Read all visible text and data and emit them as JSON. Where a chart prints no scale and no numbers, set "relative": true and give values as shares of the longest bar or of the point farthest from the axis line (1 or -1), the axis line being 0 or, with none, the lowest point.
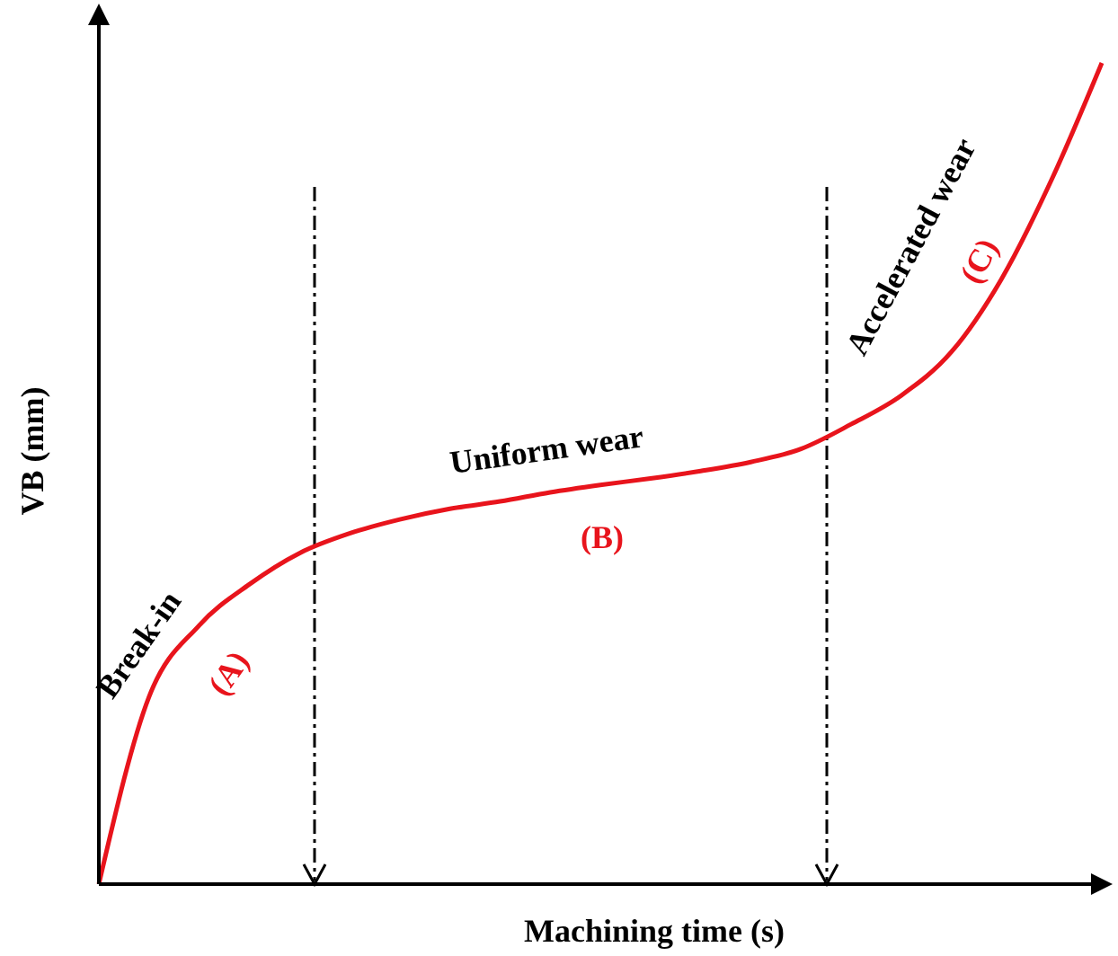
{
  "chart_data": {
    "type": "line",
    "relative": true,
    "xlabel": "Machining time  (s)",
    "ylabel": "VB (mm)",
    "categories": [
      null,
      null,
      null,
      null,
      null,
      null,
      null,
      null,
      null,
      null,
      null,
      null,
      null,
      null,
      null,
      null,
      null,
      null,
      null,
      null,
      null
    ],
    "series": [
      {
        "color": "#e8141c",
        "values": [
          0,
          0.228,
          0.315,
          0.365,
          0.403,
          0.427,
          0.444,
          0.457,
          0.466,
          0.477,
          0.486,
          0.494,
          0.503,
          0.514,
          0.53,
          0.56,
          0.595,
          0.648,
          0.737,
          0.858,
          1.0
        ]
      }
    ],
    "annotations": [
      "Break-in",
      "(A)",
      "Uniform wear",
      "(B)",
      "Accelerated wear",
      "(C)"
    ],
    "marker": "none",
    "line_style": "solid"
  }
}
